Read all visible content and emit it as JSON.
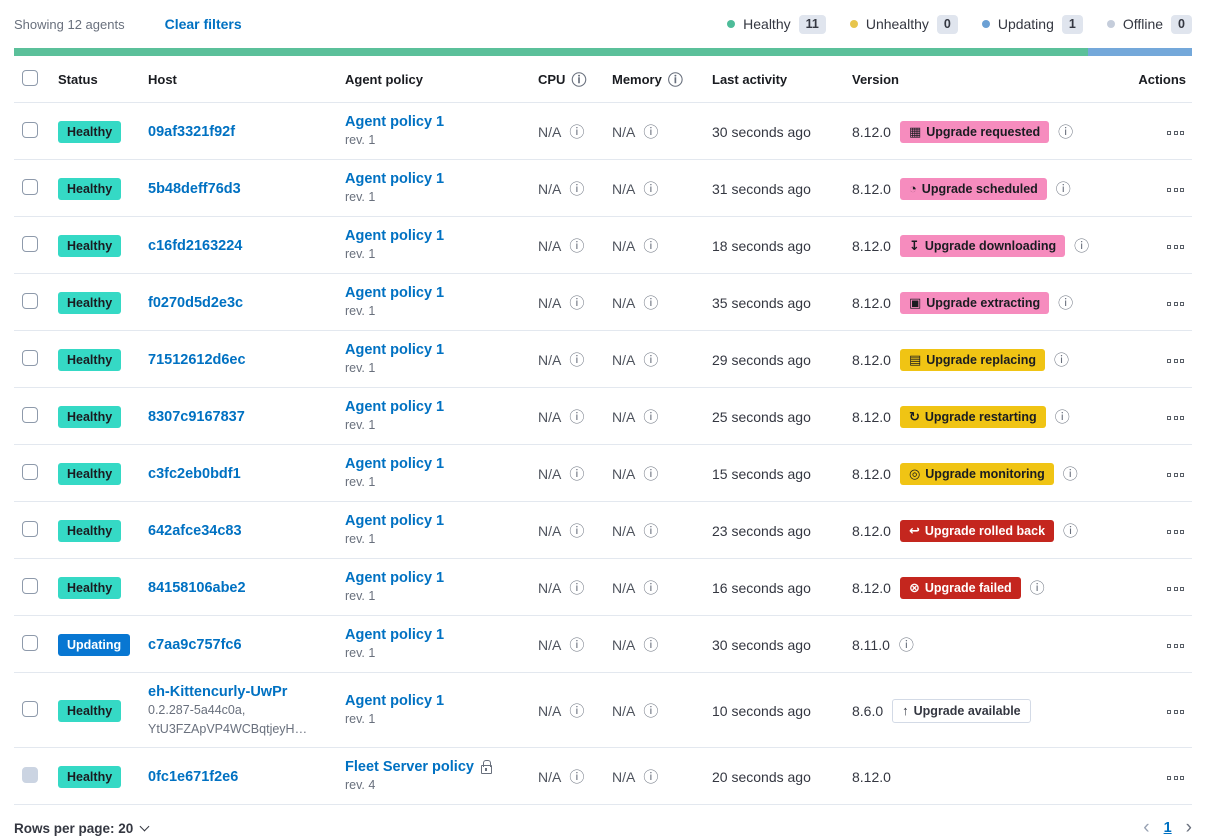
{
  "toolbar": {
    "showing": "Showing 12 agents",
    "clear_filters": "Clear filters"
  },
  "legend": {
    "items": [
      {
        "label": "Healthy",
        "count": "11",
        "color": "#4DBC99"
      },
      {
        "label": "Unhealthy",
        "count": "0",
        "color": "#E7C54D"
      },
      {
        "label": "Updating",
        "count": "1",
        "color": "#6BA0D4"
      },
      {
        "label": "Offline",
        "count": "0",
        "color": "#C5CDDB"
      }
    ]
  },
  "status_bar": {
    "segments": [
      {
        "status": "healthy",
        "fraction": 0.912,
        "color": "#5BC09A"
      },
      {
        "status": "updating",
        "fraction": 0.088,
        "color": "#74A8DA"
      }
    ]
  },
  "table": {
    "columns": [
      {
        "label": "Status"
      },
      {
        "label": "Host"
      },
      {
        "label": "Agent policy"
      },
      {
        "label": "CPU",
        "has_info": true
      },
      {
        "label": "Memory",
        "has_info": true
      },
      {
        "label": "Last activity"
      },
      {
        "label": "Version"
      },
      {
        "label": "Actions"
      }
    ]
  },
  "rows": [
    {
      "status": {
        "label": "Healthy",
        "variant": "healthy"
      },
      "host": {
        "name": "09af3321f92f"
      },
      "policy": {
        "name": "Agent policy 1",
        "rev": "rev. 1"
      },
      "cpu": "N/A",
      "memory": "N/A",
      "last_activity": "30 seconds ago",
      "version": "8.12.0",
      "upgrade": {
        "label": "Upgrade requested",
        "icon": "calendar",
        "variant": "accent"
      },
      "info": true
    },
    {
      "status": {
        "label": "Healthy",
        "variant": "healthy"
      },
      "host": {
        "name": "5b48deff76d3"
      },
      "policy": {
        "name": "Agent policy 1",
        "rev": "rev. 1"
      },
      "cpu": "N/A",
      "memory": "N/A",
      "last_activity": "31 seconds ago",
      "version": "8.12.0",
      "upgrade": {
        "label": "Upgrade scheduled",
        "icon": "clock",
        "variant": "accent"
      },
      "info": true
    },
    {
      "status": {
        "label": "Healthy",
        "variant": "healthy"
      },
      "host": {
        "name": "c16fd2163224"
      },
      "policy": {
        "name": "Agent policy 1",
        "rev": "rev. 1"
      },
      "cpu": "N/A",
      "memory": "N/A",
      "last_activity": "18 seconds ago",
      "version": "8.12.0",
      "upgrade": {
        "label": "Upgrade downloading",
        "icon": "download",
        "variant": "accent"
      },
      "info": true
    },
    {
      "status": {
        "label": "Healthy",
        "variant": "healthy"
      },
      "host": {
        "name": "f0270d5d2e3c"
      },
      "policy": {
        "name": "Agent policy 1",
        "rev": "rev. 1"
      },
      "cpu": "N/A",
      "memory": "N/A",
      "last_activity": "35 seconds ago",
      "version": "8.12.0",
      "upgrade": {
        "label": "Upgrade extracting",
        "icon": "package",
        "variant": "accent"
      },
      "info": true
    },
    {
      "status": {
        "label": "Healthy",
        "variant": "healthy"
      },
      "host": {
        "name": "71512612d6ec"
      },
      "policy": {
        "name": "Agent policy 1",
        "rev": "rev. 1"
      },
      "cpu": "N/A",
      "memory": "N/A",
      "last_activity": "29 seconds ago",
      "version": "8.12.0",
      "upgrade": {
        "label": "Upgrade replacing",
        "icon": "document",
        "variant": "warning"
      },
      "info": true
    },
    {
      "status": {
        "label": "Healthy",
        "variant": "healthy"
      },
      "host": {
        "name": "8307c9167837"
      },
      "policy": {
        "name": "Agent policy 1",
        "rev": "rev. 1"
      },
      "cpu": "N/A",
      "memory": "N/A",
      "last_activity": "25 seconds ago",
      "version": "8.12.0",
      "upgrade": {
        "label": "Upgrade restarting",
        "icon": "refresh",
        "variant": "warning"
      },
      "info": true
    },
    {
      "status": {
        "label": "Healthy",
        "variant": "healthy"
      },
      "host": {
        "name": "c3fc2eb0bdf1"
      },
      "policy": {
        "name": "Agent policy 1",
        "rev": "rev. 1"
      },
      "cpu": "N/A",
      "memory": "N/A",
      "last_activity": "15 seconds ago",
      "version": "8.12.0",
      "upgrade": {
        "label": "Upgrade monitoring",
        "icon": "inspect",
        "variant": "warning"
      },
      "info": true
    },
    {
      "status": {
        "label": "Healthy",
        "variant": "healthy"
      },
      "host": {
        "name": "642afce34c83"
      },
      "policy": {
        "name": "Agent policy 1",
        "rev": "rev. 1"
      },
      "cpu": "N/A",
      "memory": "N/A",
      "last_activity": "23 seconds ago",
      "version": "8.12.0",
      "upgrade": {
        "label": "Upgrade rolled back",
        "icon": "rollback",
        "variant": "danger"
      },
      "info": true
    },
    {
      "status": {
        "label": "Healthy",
        "variant": "healthy"
      },
      "host": {
        "name": "84158106abe2"
      },
      "policy": {
        "name": "Agent policy 1",
        "rev": "rev. 1"
      },
      "cpu": "N/A",
      "memory": "N/A",
      "last_activity": "16 seconds ago",
      "version": "8.12.0",
      "upgrade": {
        "label": "Upgrade failed",
        "icon": "error",
        "variant": "danger"
      },
      "info": true
    },
    {
      "status": {
        "label": "Updating",
        "variant": "updating"
      },
      "host": {
        "name": "c7aa9c757fc6"
      },
      "policy": {
        "name": "Agent policy 1",
        "rev": "rev. 1"
      },
      "cpu": "N/A",
      "memory": "N/A",
      "last_activity": "30 seconds ago",
      "version": "8.11.0",
      "upgrade": null,
      "info": true
    },
    {
      "status": {
        "label": "Healthy",
        "variant": "healthy"
      },
      "host": {
        "name": "eh-Kittencurly-UwPr",
        "sub": [
          "0.2.287-5a44c0a,",
          "YtU3FZApVP4WCBqtjeyH…"
        ]
      },
      "policy": {
        "name": "Agent policy 1",
        "rev": "rev. 1"
      },
      "cpu": "N/A",
      "memory": "N/A",
      "last_activity": "10 seconds ago",
      "version": "8.6.0",
      "upgrade": {
        "label": "Upgrade available",
        "icon": "up-arrow",
        "variant": "hollow"
      },
      "info": false
    },
    {
      "status": {
        "label": "Healthy",
        "variant": "healthy"
      },
      "checkbox_disabled": true,
      "host": {
        "name": "0fc1e671f2e6"
      },
      "policy": {
        "name": "Fleet Server policy",
        "rev": "rev. 4",
        "lock": true
      },
      "cpu": "N/A",
      "memory": "N/A",
      "last_activity": "20 seconds ago",
      "version": "8.12.0",
      "upgrade": null,
      "info": false
    }
  ],
  "footer": {
    "rows_per_page_label": "Rows per page: 20",
    "page_number": "1",
    "prev": "‹",
    "next": "›"
  },
  "colors": {
    "link": "#0071C2",
    "healthy_badge": "#35D9C5",
    "updating_badge": "#0877D2",
    "upgrade_accent_badge": "#F68CBE",
    "upgrade_warning_badge": "#F0C414",
    "upgrade_danger_badge": "#C4261E",
    "bar_healthy": "#5BC09A",
    "bar_updating": "#74A8DA",
    "row_border": "#E3E8EF"
  }
}
